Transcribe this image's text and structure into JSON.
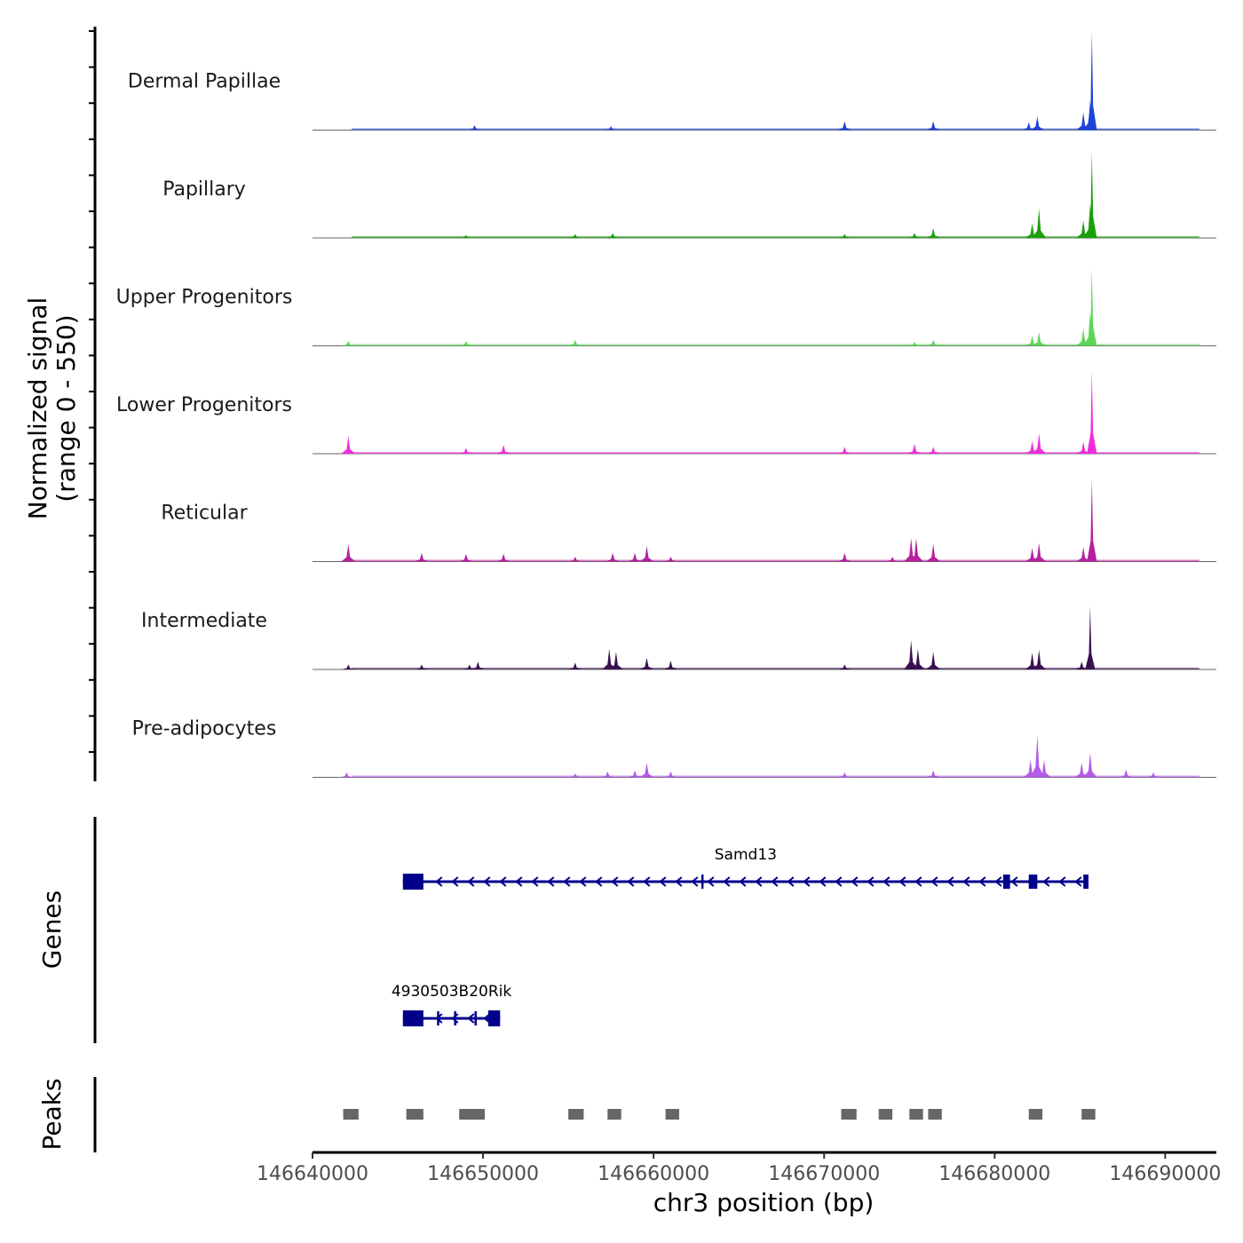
{
  "chart_data": {
    "type": "area",
    "title": "",
    "ylabel": "Normalized signal",
    "ylabel_range": "(range 0 - 550)",
    "y_range": [
      0,
      550
    ],
    "xlabel": "chr3 position (bp)",
    "xlim": [
      146640000,
      146693000
    ],
    "x_ticks": [
      {
        "value": 146640000,
        "label": "146640000"
      },
      {
        "value": 146650000,
        "label": "146650000"
      },
      {
        "value": 146660000,
        "label": "146660000"
      },
      {
        "value": 146670000,
        "label": "146670000"
      },
      {
        "value": 146680000,
        "label": "146680000"
      },
      {
        "value": 146690000,
        "label": "146690000"
      }
    ],
    "series": [
      {
        "name": "Dermal Papillae",
        "color": "#1E44D6",
        "peaks": [
          [
            146649500,
            0.05
          ],
          [
            146657500,
            0.04
          ],
          [
            146671200,
            0.09
          ],
          [
            146676400,
            0.09
          ],
          [
            146682000,
            0.08
          ],
          [
            146682500,
            0.14
          ],
          [
            146685200,
            0.18
          ],
          [
            146685600,
            0.3
          ],
          [
            146685700,
            1.0
          ]
        ]
      },
      {
        "name": "Papillary",
        "color": "#1A9E0A",
        "peaks": [
          [
            146649000,
            0.03
          ],
          [
            146655400,
            0.04
          ],
          [
            146657600,
            0.05
          ],
          [
            146671200,
            0.04
          ],
          [
            146675300,
            0.05
          ],
          [
            146676400,
            0.1
          ],
          [
            146682200,
            0.15
          ],
          [
            146682600,
            0.3
          ],
          [
            146685200,
            0.18
          ],
          [
            146685600,
            0.35
          ],
          [
            146685700,
            0.88
          ]
        ]
      },
      {
        "name": "Upper Progenitors",
        "color": "#5FD65A",
        "peaks": [
          [
            146642100,
            0.05
          ],
          [
            146649000,
            0.05
          ],
          [
            146655400,
            0.06
          ],
          [
            146675300,
            0.04
          ],
          [
            146676400,
            0.06
          ],
          [
            146682200,
            0.1
          ],
          [
            146682600,
            0.14
          ],
          [
            146685200,
            0.18
          ],
          [
            146685600,
            0.35
          ],
          [
            146685700,
            0.8
          ]
        ]
      },
      {
        "name": "Lower Progenitors",
        "color": "#F02EDD",
        "peaks": [
          [
            146642100,
            0.18
          ],
          [
            146649000,
            0.06
          ],
          [
            146651200,
            0.09
          ],
          [
            146671200,
            0.07
          ],
          [
            146675300,
            0.1
          ],
          [
            146676400,
            0.07
          ],
          [
            146682200,
            0.13
          ],
          [
            146682600,
            0.21
          ],
          [
            146685200,
            0.12
          ],
          [
            146685700,
            0.85
          ]
        ]
      },
      {
        "name": "Reticular",
        "color": "#B5219E",
        "peaks": [
          [
            146642100,
            0.18
          ],
          [
            146646400,
            0.09
          ],
          [
            146649000,
            0.08
          ],
          [
            146651200,
            0.08
          ],
          [
            146655400,
            0.05
          ],
          [
            146657600,
            0.09
          ],
          [
            146658900,
            0.09
          ],
          [
            146659600,
            0.16
          ],
          [
            146661000,
            0.05
          ],
          [
            146671200,
            0.09
          ],
          [
            146674000,
            0.05
          ],
          [
            146675100,
            0.24
          ],
          [
            146675400,
            0.24
          ],
          [
            146676400,
            0.18
          ],
          [
            146682200,
            0.14
          ],
          [
            146682600,
            0.19
          ],
          [
            146685200,
            0.15
          ],
          [
            146685700,
            0.85
          ]
        ]
      },
      {
        "name": "Intermediate",
        "color": "#3B1052",
        "peaks": [
          [
            146642100,
            0.05
          ],
          [
            146646400,
            0.05
          ],
          [
            146649200,
            0.05
          ],
          [
            146649700,
            0.08
          ],
          [
            146655400,
            0.07
          ],
          [
            146657400,
            0.21
          ],
          [
            146657800,
            0.18
          ],
          [
            146659600,
            0.12
          ],
          [
            146661000,
            0.09
          ],
          [
            146671200,
            0.05
          ],
          [
            146675100,
            0.3
          ],
          [
            146675500,
            0.21
          ],
          [
            146676400,
            0.18
          ],
          [
            146682200,
            0.17
          ],
          [
            146682600,
            0.2
          ],
          [
            146685100,
            0.08
          ],
          [
            146685600,
            0.65
          ]
        ]
      },
      {
        "name": "Pre-adipocytes",
        "color": "#B55BE8",
        "peaks": [
          [
            146642000,
            0.05
          ],
          [
            146655400,
            0.04
          ],
          [
            146657300,
            0.06
          ],
          [
            146658900,
            0.07
          ],
          [
            146659600,
            0.15
          ],
          [
            146661000,
            0.06
          ],
          [
            146671200,
            0.05
          ],
          [
            146676400,
            0.07
          ],
          [
            146682100,
            0.18
          ],
          [
            146682500,
            0.43
          ],
          [
            146682900,
            0.18
          ],
          [
            146685100,
            0.15
          ],
          [
            146685600,
            0.25
          ],
          [
            146687700,
            0.08
          ],
          [
            146689300,
            0.05
          ]
        ]
      }
    ],
    "genes_label": "Genes",
    "genes": [
      {
        "name": "Samd13",
        "start": 146645300,
        "end": 146685500,
        "strand": "-",
        "exons": [
          [
            146645300,
            146646500
          ],
          [
            146662800,
            146662900
          ],
          [
            146680500,
            146680900
          ],
          [
            146682000,
            146682500
          ],
          [
            146685200,
            146685500
          ]
        ]
      },
      {
        "name": "4930503B20Rik",
        "start": 146645300,
        "end": 146651000,
        "strand": "-",
        "exons": [
          [
            146645300,
            146646500
          ],
          [
            146647300,
            146647400
          ],
          [
            146648300,
            146648400
          ],
          [
            146649500,
            146649600
          ],
          [
            146650300,
            146651000
          ]
        ]
      }
    ],
    "peaks_label": "Peaks",
    "peaks": [
      [
        146641800,
        146642700
      ],
      [
        146645500,
        146646500
      ],
      [
        146648600,
        146650100
      ],
      [
        146655000,
        146655900
      ],
      [
        146657300,
        146658100
      ],
      [
        146660700,
        146661500
      ],
      [
        146671000,
        146671900
      ],
      [
        146673200,
        146674000
      ],
      [
        146675000,
        146675800
      ],
      [
        146676100,
        146676900
      ],
      [
        146682000,
        146682800
      ],
      [
        146685100,
        146685900
      ]
    ]
  }
}
